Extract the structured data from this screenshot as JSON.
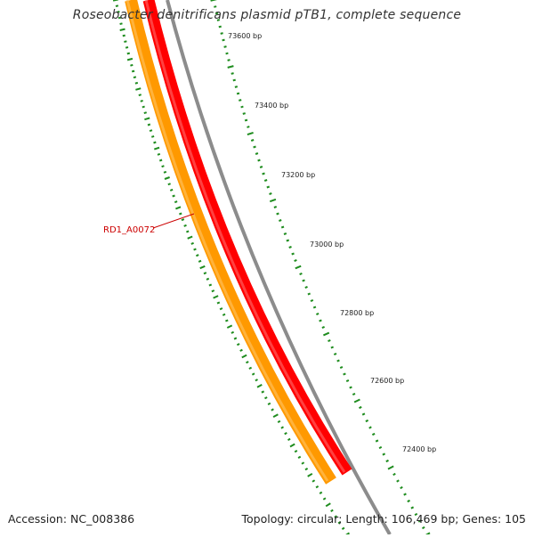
{
  "title": "Roseobacter denitrificans plasmid pTB1, complete sequence",
  "footer": {
    "accession": "Accession: NC_008386",
    "summary": "Topology: circular; Length: 106,469 bp; Genes: 105"
  },
  "ruler_labels": [
    "73600 bp",
    "73400 bp",
    "73200 bp",
    "73000 bp",
    "72800 bp",
    "72600 bp",
    "72400 bp"
  ],
  "gene_label": "RD1_A0072",
  "colors": {
    "backbone": "#8c8c8c",
    "forward_feature": "#ff0000",
    "reverse_feature": "#ff9900",
    "tick": "#1e8c1e",
    "gene_label": "#cc0000"
  }
}
